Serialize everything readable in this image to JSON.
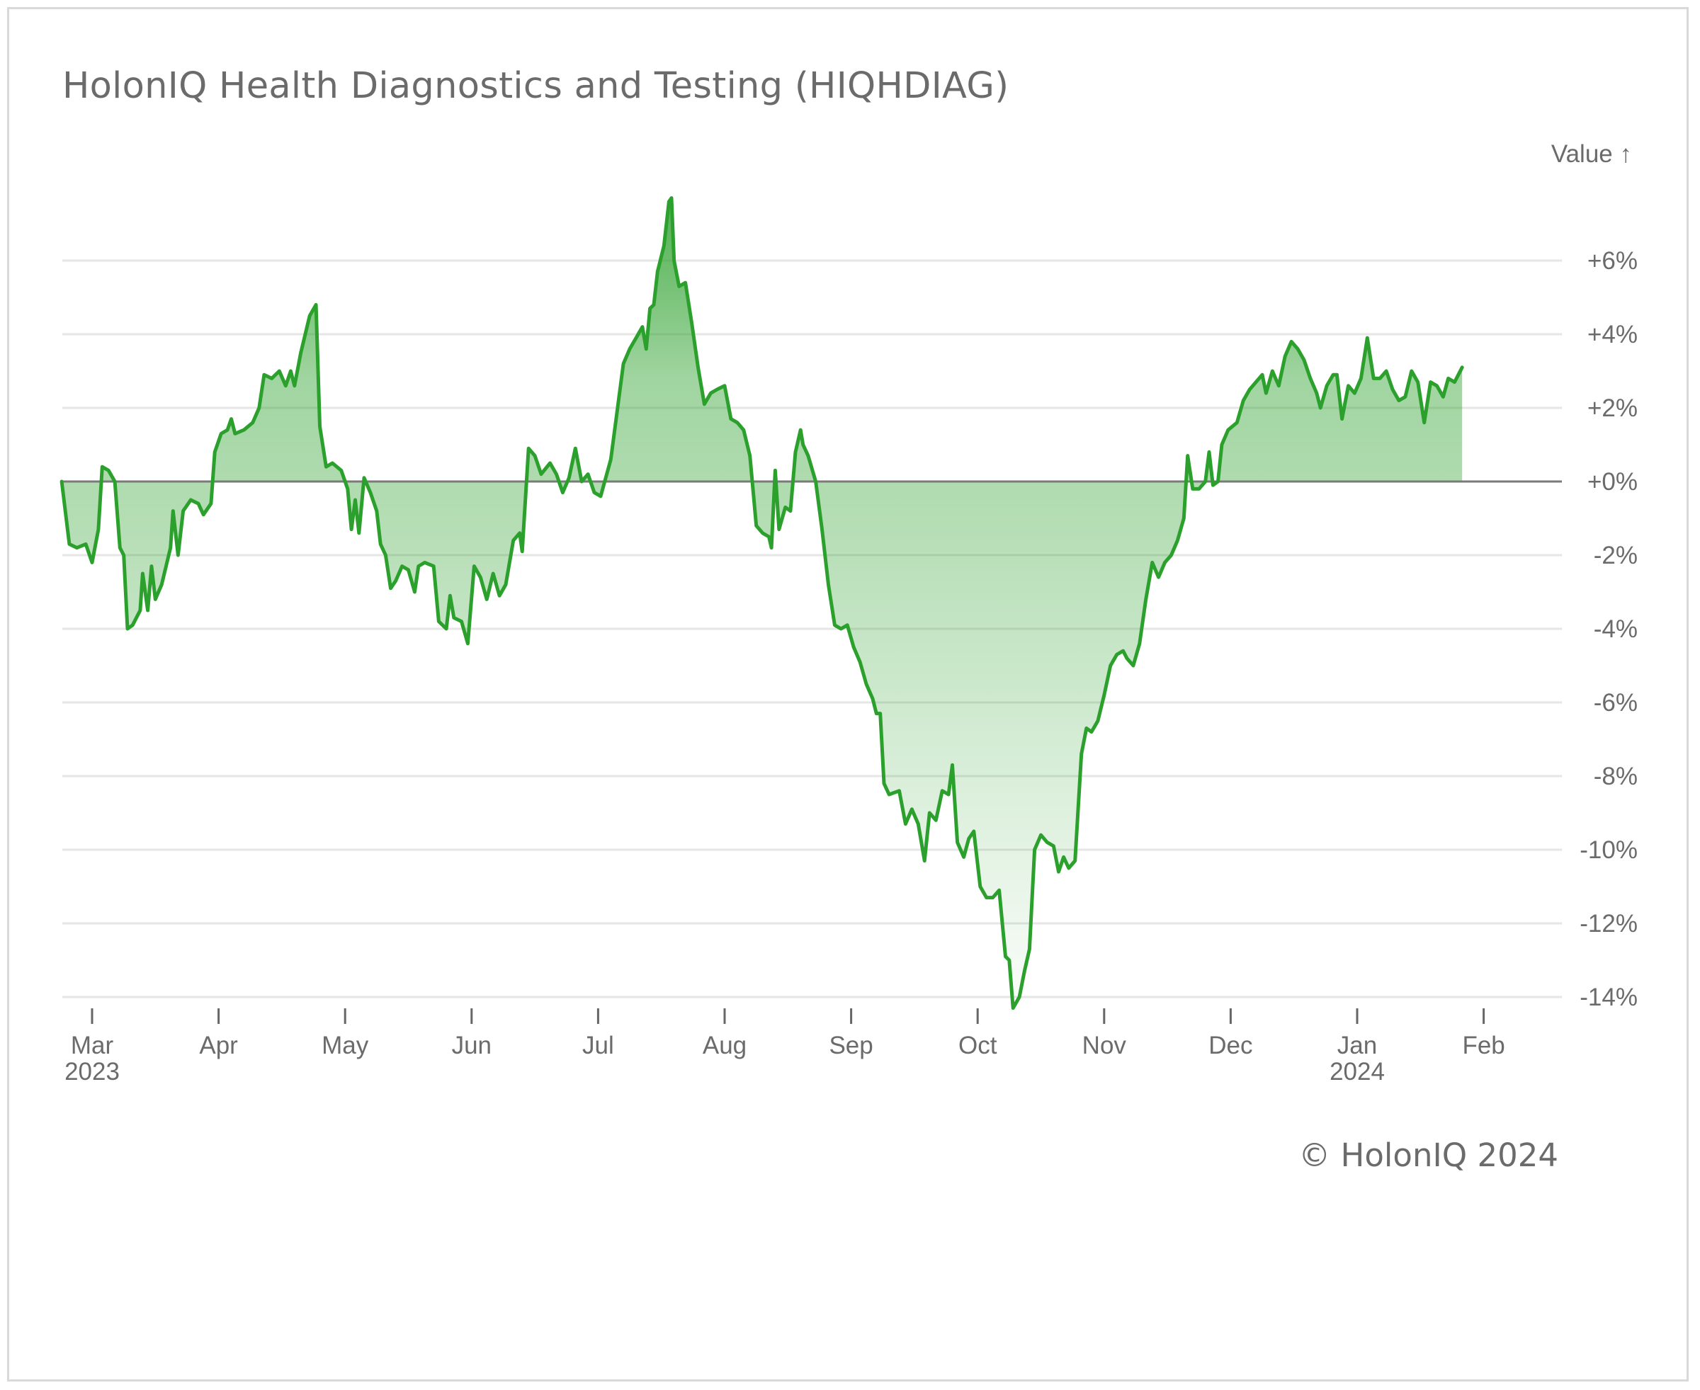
{
  "chart_data": {
    "type": "area",
    "title": "HolonIQ Health Diagnostics and Testing (HIQHDIAG)",
    "ylabel": "Value ↑",
    "ylim": [
      -14,
      6
    ],
    "y_ticks": [
      6,
      4,
      2,
      0,
      -2,
      -4,
      -6,
      -8,
      -10,
      -12,
      -14
    ],
    "y_tick_labels": [
      "+6%",
      "+4%",
      "+2%",
      "+0%",
      "-2%",
      "-4%",
      "-6%",
      "-8%",
      "-10%",
      "-12%",
      "-14%"
    ],
    "x_ticks": [
      {
        "label": "Mar",
        "year": "2023",
        "month": 0
      },
      {
        "label": "Apr",
        "year": "",
        "month": 1
      },
      {
        "label": "May",
        "year": "",
        "month": 2
      },
      {
        "label": "Jun",
        "year": "",
        "month": 3
      },
      {
        "label": "Jul",
        "year": "",
        "month": 4
      },
      {
        "label": "Aug",
        "year": "",
        "month": 5
      },
      {
        "label": "Sep",
        "year": "",
        "month": 6
      },
      {
        "label": "Oct",
        "year": "",
        "month": 7
      },
      {
        "label": "Nov",
        "year": "",
        "month": 8
      },
      {
        "label": "Dec",
        "year": "",
        "month": 9
      },
      {
        "label": "Jan",
        "year": "2024",
        "month": 10
      },
      {
        "label": "Feb",
        "year": "",
        "month": 11
      }
    ],
    "x_unit": "months since Mar 1 2023",
    "xlim": [
      -0.24,
      11.63
    ],
    "series": [
      {
        "name": "HIQHDIAG",
        "color": "#2ca02c",
        "points": [
          [
            -0.24,
            0.0
          ],
          [
            -0.18,
            -1.7
          ],
          [
            -0.12,
            -1.8
          ],
          [
            -0.05,
            -1.7
          ],
          [
            0.0,
            -2.2
          ],
          [
            0.05,
            -1.3
          ],
          [
            0.08,
            0.4
          ],
          [
            0.13,
            0.3
          ],
          [
            0.18,
            0.0
          ],
          [
            0.22,
            -1.8
          ],
          [
            0.25,
            -2.0
          ],
          [
            0.28,
            -4.0
          ],
          [
            0.32,
            -3.9
          ],
          [
            0.38,
            -3.5
          ],
          [
            0.4,
            -2.5
          ],
          [
            0.44,
            -3.5
          ],
          [
            0.47,
            -2.3
          ],
          [
            0.5,
            -3.2
          ],
          [
            0.55,
            -2.8
          ],
          [
            0.62,
            -1.8
          ],
          [
            0.64,
            -0.8
          ],
          [
            0.68,
            -2.0
          ],
          [
            0.72,
            -0.8
          ],
          [
            0.78,
            -0.5
          ],
          [
            0.84,
            -0.6
          ],
          [
            0.88,
            -0.9
          ],
          [
            0.94,
            -0.6
          ],
          [
            0.97,
            0.8
          ],
          [
            1.02,
            1.3
          ],
          [
            1.07,
            1.4
          ],
          [
            1.1,
            1.7
          ],
          [
            1.13,
            1.3
          ],
          [
            1.2,
            1.4
          ],
          [
            1.27,
            1.6
          ],
          [
            1.32,
            2.0
          ],
          [
            1.36,
            2.9
          ],
          [
            1.42,
            2.8
          ],
          [
            1.48,
            3.0
          ],
          [
            1.53,
            2.6
          ],
          [
            1.57,
            3.0
          ],
          [
            1.6,
            2.6
          ],
          [
            1.65,
            3.5
          ],
          [
            1.72,
            4.5
          ],
          [
            1.77,
            4.8
          ],
          [
            1.8,
            1.5
          ],
          [
            1.85,
            0.4
          ],
          [
            1.9,
            0.5
          ],
          [
            1.97,
            0.3
          ],
          [
            2.02,
            -0.2
          ],
          [
            2.05,
            -1.3
          ],
          [
            2.08,
            -0.5
          ],
          [
            2.11,
            -1.4
          ],
          [
            2.15,
            0.1
          ],
          [
            2.2,
            -0.3
          ],
          [
            2.25,
            -0.8
          ],
          [
            2.28,
            -1.7
          ],
          [
            2.32,
            -2.0
          ],
          [
            2.36,
            -2.9
          ],
          [
            2.4,
            -2.7
          ],
          [
            2.45,
            -2.3
          ],
          [
            2.5,
            -2.4
          ],
          [
            2.55,
            -3.0
          ],
          [
            2.58,
            -2.3
          ],
          [
            2.63,
            -2.2
          ],
          [
            2.7,
            -2.3
          ],
          [
            2.74,
            -3.8
          ],
          [
            2.8,
            -4.0
          ],
          [
            2.83,
            -3.1
          ],
          [
            2.86,
            -3.7
          ],
          [
            2.92,
            -3.8
          ],
          [
            2.97,
            -4.4
          ],
          [
            3.02,
            -2.3
          ],
          [
            3.07,
            -2.6
          ],
          [
            3.12,
            -3.2
          ],
          [
            3.17,
            -2.5
          ],
          [
            3.22,
            -3.1
          ],
          [
            3.27,
            -2.8
          ],
          [
            3.33,
            -1.6
          ],
          [
            3.38,
            -1.4
          ],
          [
            3.4,
            -1.9
          ],
          [
            3.45,
            0.9
          ],
          [
            3.5,
            0.7
          ],
          [
            3.55,
            0.2
          ],
          [
            3.62,
            0.5
          ],
          [
            3.67,
            0.2
          ],
          [
            3.72,
            -0.3
          ],
          [
            3.77,
            0.1
          ],
          [
            3.82,
            0.9
          ],
          [
            3.87,
            0.0
          ],
          [
            3.92,
            0.2
          ],
          [
            3.97,
            -0.3
          ],
          [
            4.02,
            -0.4
          ],
          [
            4.1,
            0.6
          ],
          [
            4.15,
            1.9
          ],
          [
            4.2,
            3.2
          ],
          [
            4.25,
            3.6
          ],
          [
            4.3,
            3.9
          ],
          [
            4.35,
            4.2
          ],
          [
            4.38,
            3.6
          ],
          [
            4.41,
            4.7
          ],
          [
            4.44,
            4.8
          ],
          [
            4.47,
            5.7
          ],
          [
            4.52,
            6.4
          ],
          [
            4.56,
            7.6
          ],
          [
            4.58,
            7.7
          ],
          [
            4.6,
            6.0
          ],
          [
            4.64,
            5.3
          ],
          [
            4.69,
            5.4
          ],
          [
            4.74,
            4.3
          ],
          [
            4.79,
            3.1
          ],
          [
            4.84,
            2.1
          ],
          [
            4.89,
            2.4
          ],
          [
            4.94,
            2.5
          ],
          [
            5.0,
            2.6
          ],
          [
            5.05,
            1.7
          ],
          [
            5.1,
            1.6
          ],
          [
            5.15,
            1.4
          ],
          [
            5.2,
            0.7
          ],
          [
            5.25,
            -1.2
          ],
          [
            5.3,
            -1.4
          ],
          [
            5.35,
            -1.5
          ],
          [
            5.37,
            -1.8
          ],
          [
            5.4,
            0.3
          ],
          [
            5.43,
            -1.3
          ],
          [
            5.48,
            -0.7
          ],
          [
            5.52,
            -0.8
          ],
          [
            5.56,
            0.8
          ],
          [
            5.6,
            1.4
          ],
          [
            5.62,
            1.0
          ],
          [
            5.66,
            0.7
          ],
          [
            5.72,
            0.0
          ],
          [
            5.77,
            -1.3
          ],
          [
            5.82,
            -2.8
          ],
          [
            5.87,
            -3.9
          ],
          [
            5.92,
            -4.0
          ],
          [
            5.97,
            -3.9
          ],
          [
            6.02,
            -4.5
          ],
          [
            6.07,
            -4.9
          ],
          [
            6.12,
            -5.5
          ],
          [
            6.17,
            -5.9
          ],
          [
            6.2,
            -6.3
          ],
          [
            6.23,
            -6.3
          ],
          [
            6.26,
            -8.2
          ],
          [
            6.3,
            -8.5
          ],
          [
            6.38,
            -8.4
          ],
          [
            6.43,
            -9.3
          ],
          [
            6.48,
            -8.9
          ],
          [
            6.53,
            -9.3
          ],
          [
            6.58,
            -10.3
          ],
          [
            6.62,
            -9.0
          ],
          [
            6.67,
            -9.2
          ],
          [
            6.72,
            -8.4
          ],
          [
            6.77,
            -8.5
          ],
          [
            6.8,
            -7.7
          ],
          [
            6.84,
            -9.8
          ],
          [
            6.89,
            -10.2
          ],
          [
            6.93,
            -9.7
          ],
          [
            6.97,
            -9.5
          ],
          [
            7.02,
            -11.0
          ],
          [
            7.07,
            -11.3
          ],
          [
            7.12,
            -11.3
          ],
          [
            7.17,
            -11.1
          ],
          [
            7.22,
            -12.9
          ],
          [
            7.25,
            -13.0
          ],
          [
            7.28,
            -14.3
          ],
          [
            7.33,
            -14.0
          ],
          [
            7.37,
            -13.3
          ],
          [
            7.41,
            -12.7
          ],
          [
            7.45,
            -10.0
          ],
          [
            7.5,
            -9.6
          ],
          [
            7.55,
            -9.8
          ],
          [
            7.6,
            -9.9
          ],
          [
            7.64,
            -10.6
          ],
          [
            7.68,
            -10.2
          ],
          [
            7.72,
            -10.5
          ],
          [
            7.77,
            -10.3
          ],
          [
            7.82,
            -7.4
          ],
          [
            7.86,
            -6.7
          ],
          [
            7.9,
            -6.8
          ],
          [
            7.95,
            -6.5
          ],
          [
            8.0,
            -5.8
          ],
          [
            8.05,
            -5.0
          ],
          [
            8.1,
            -4.7
          ],
          [
            8.15,
            -4.6
          ],
          [
            8.18,
            -4.8
          ],
          [
            8.23,
            -5.0
          ],
          [
            8.28,
            -4.4
          ],
          [
            8.33,
            -3.2
          ],
          [
            8.38,
            -2.2
          ],
          [
            8.43,
            -2.6
          ],
          [
            8.48,
            -2.2
          ],
          [
            8.53,
            -2.0
          ],
          [
            8.58,
            -1.6
          ],
          [
            8.63,
            -1.0
          ],
          [
            8.66,
            0.7
          ],
          [
            8.7,
            -0.2
          ],
          [
            8.75,
            -0.2
          ],
          [
            8.8,
            0.0
          ],
          [
            8.83,
            0.8
          ],
          [
            8.86,
            -0.1
          ],
          [
            8.9,
            0.0
          ],
          [
            8.93,
            1.0
          ],
          [
            8.98,
            1.4
          ],
          [
            9.05,
            1.6
          ],
          [
            9.1,
            2.2
          ],
          [
            9.15,
            2.5
          ],
          [
            9.2,
            2.7
          ],
          [
            9.25,
            2.9
          ],
          [
            9.28,
            2.4
          ],
          [
            9.33,
            3.0
          ],
          [
            9.38,
            2.6
          ],
          [
            9.43,
            3.4
          ],
          [
            9.48,
            3.8
          ],
          [
            9.53,
            3.6
          ],
          [
            9.58,
            3.3
          ],
          [
            9.63,
            2.8
          ],
          [
            9.68,
            2.4
          ],
          [
            9.71,
            2.0
          ],
          [
            9.76,
            2.6
          ],
          [
            9.81,
            2.9
          ],
          [
            9.84,
            2.9
          ],
          [
            9.88,
            1.7
          ],
          [
            9.93,
            2.6
          ],
          [
            9.98,
            2.4
          ],
          [
            10.03,
            2.8
          ],
          [
            10.08,
            3.9
          ],
          [
            10.13,
            2.8
          ],
          [
            10.18,
            2.8
          ],
          [
            10.23,
            3.0
          ],
          [
            10.28,
            2.5
          ],
          [
            10.33,
            2.2
          ],
          [
            10.38,
            2.3
          ],
          [
            10.43,
            3.0
          ],
          [
            10.48,
            2.7
          ],
          [
            10.53,
            1.6
          ],
          [
            10.58,
            2.7
          ],
          [
            10.63,
            2.6
          ],
          [
            10.68,
            2.3
          ],
          [
            10.72,
            2.8
          ],
          [
            10.77,
            2.7
          ],
          [
            10.83,
            3.1
          ]
        ]
      }
    ],
    "baseline": 0
  },
  "footer": {
    "copyright": "© HolonIQ 2024"
  }
}
